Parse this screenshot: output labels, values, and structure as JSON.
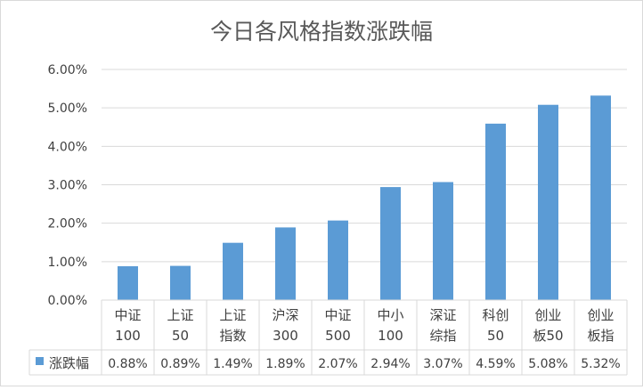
{
  "chart_data": {
    "type": "bar",
    "title": "今日各风格指数涨跌幅",
    "categories": [
      [
        "中证",
        "100"
      ],
      [
        "上证",
        "50"
      ],
      [
        "上证",
        "指数"
      ],
      [
        "沪深",
        "300"
      ],
      [
        "中证",
        "500"
      ],
      [
        "中小",
        "100"
      ],
      [
        "深证",
        "综指"
      ],
      [
        "科创",
        "50"
      ],
      [
        "创业",
        "板50"
      ],
      [
        "创业",
        "板指"
      ]
    ],
    "series": [
      {
        "name": "涨跌幅",
        "values": [
          0.88,
          0.89,
          1.49,
          1.89,
          2.07,
          2.94,
          3.07,
          4.59,
          5.08,
          5.32
        ],
        "labels": [
          "0.88%",
          "0.89%",
          "1.49%",
          "1.89%",
          "2.07%",
          "2.94%",
          "3.07%",
          "4.59%",
          "5.08%",
          "5.32%"
        ]
      }
    ],
    "y_ticks": [
      "0.00%",
      "1.00%",
      "2.00%",
      "3.00%",
      "4.00%",
      "5.00%",
      "6.00%"
    ],
    "ylim": [
      0,
      6
    ],
    "grid": true,
    "legend": "data-table-left",
    "colors": {
      "bar": "#5b9bd5",
      "grid": "#d9d9d9",
      "text": "#404040",
      "title": "#595959"
    }
  }
}
